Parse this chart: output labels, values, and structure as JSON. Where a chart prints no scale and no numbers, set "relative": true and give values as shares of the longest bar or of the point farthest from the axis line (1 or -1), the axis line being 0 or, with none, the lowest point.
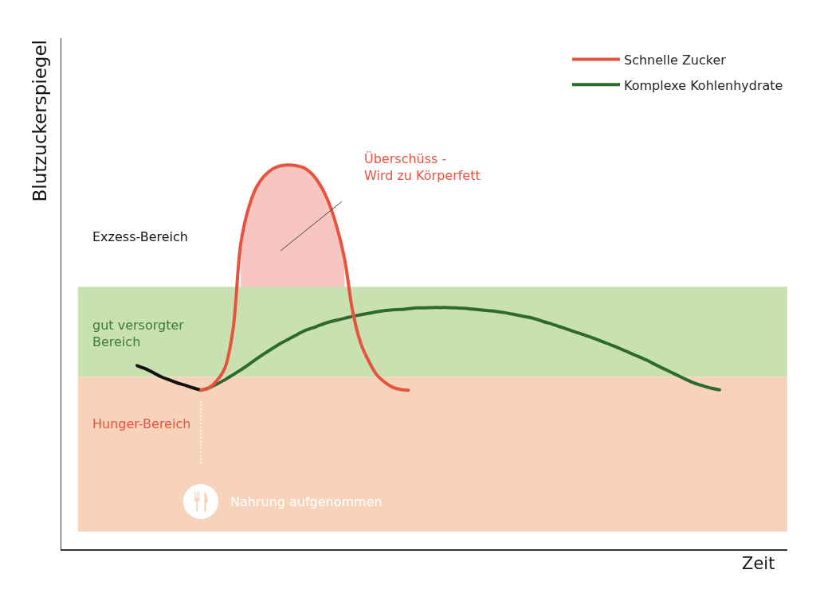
{
  "chart_data": {
    "type": "line",
    "relative": true,
    "xlabel": "Zeit",
    "ylabel": "Blutzuckerspiegel",
    "categories": [
      null,
      null,
      null,
      null,
      null,
      null,
      null,
      null,
      null,
      null,
      null,
      null,
      null,
      null,
      null,
      null,
      null,
      null,
      null,
      null,
      null,
      null,
      null,
      null,
      null,
      null,
      null,
      null,
      null,
      null,
      null,
      null,
      null,
      null,
      null,
      null,
      null,
      null,
      null,
      null,
      null,
      null,
      null,
      null,
      null,
      null,
      null,
      null,
      null,
      null,
      null,
      null,
      null,
      null,
      null,
      null,
      null,
      null,
      null,
      null,
      null,
      null,
      null,
      null,
      null,
      null,
      null,
      null,
      null,
      null,
      null,
      null,
      null,
      null,
      null,
      null,
      null,
      null,
      null,
      null,
      null,
      null,
      null,
      null,
      null,
      null,
      null,
      null,
      null,
      null,
      null
    ],
    "series": [
      {
        "name": "Schnelle Zucker",
        "color": "#e8533f",
        "values": [
          null,
          null,
          null,
          null,
          null,
          null,
          null,
          null,
          null,
          null,
          null,
          null,
          null,
          null,
          null,
          null,
          null,
          0.414,
          0.42,
          0.439,
          0.472,
          0.569,
          0.797,
          0.89,
          0.944,
          0.973,
          0.99,
          0.998,
          1.0,
          0.998,
          0.992,
          0.975,
          0.946,
          0.903,
          0.841,
          0.756,
          0.621,
          0.538,
          0.491,
          0.455,
          0.435,
          0.422,
          0.416,
          0.414,
          null,
          null,
          null,
          null,
          null,
          null,
          null,
          null,
          null,
          null,
          null,
          null,
          null,
          null,
          null,
          null,
          null,
          null,
          null,
          null,
          null,
          null,
          null,
          null,
          null,
          null,
          null,
          null,
          null,
          null,
          null,
          null,
          null,
          null,
          null,
          null,
          null,
          null,
          null,
          null,
          null,
          null,
          null,
          null,
          null,
          null,
          null
        ],
        "lower": [
          null,
          null,
          null,
          null,
          null,
          null,
          null,
          null,
          null,
          null,
          null,
          null,
          null,
          null,
          null,
          null,
          null,
          null,
          null,
          null,
          null,
          null,
          0.683,
          0.683,
          0.683,
          0.683,
          0.683,
          0.683,
          0.683,
          0.683,
          0.683,
          0.683,
          0.683,
          0.683,
          0.683,
          0.683,
          null,
          null,
          null,
          null,
          null,
          null,
          null,
          null,
          null,
          null,
          null,
          null,
          null,
          null,
          null,
          null,
          null,
          null,
          null,
          null,
          null,
          null,
          null,
          null,
          null,
          null,
          null,
          null,
          null,
          null,
          null,
          null,
          null,
          null,
          null,
          null,
          null,
          null,
          null,
          null,
          null,
          null,
          null,
          null,
          null,
          null,
          null,
          null,
          null,
          null,
          null,
          null,
          null,
          null,
          null
        ],
        "upper": [
          null,
          null,
          null,
          null,
          null,
          null,
          null,
          null,
          null,
          null,
          null,
          null,
          null,
          null,
          null,
          null,
          null,
          null,
          null,
          null,
          null,
          null,
          0.797,
          0.89,
          0.944,
          0.973,
          0.99,
          0.998,
          1.0,
          0.998,
          0.992,
          0.975,
          0.946,
          0.903,
          0.841,
          0.756,
          null,
          null,
          null,
          null,
          null,
          null,
          null,
          null,
          null,
          null,
          null,
          null,
          null,
          null,
          null,
          null,
          null,
          null,
          null,
          null,
          null,
          null,
          null,
          null,
          null,
          null,
          null,
          null,
          null,
          null,
          null,
          null,
          null,
          null,
          null,
          null,
          null,
          null,
          null,
          null,
          null,
          null,
          null,
          null,
          null,
          null,
          null,
          null,
          null,
          null,
          null,
          null,
          null,
          null,
          null
        ]
      },
      {
        "name": "Komplexe Kohlenhydrate",
        "color": "#2e6a2b",
        "values": [
          null,
          null,
          null,
          null,
          null,
          null,
          null,
          null,
          null,
          null,
          null,
          null,
          null,
          null,
          null,
          null,
          null,
          0.414,
          0.42,
          0.43,
          0.441,
          0.454,
          0.467,
          0.481,
          0.496,
          0.51,
          0.523,
          0.536,
          0.547,
          0.558,
          0.569,
          0.576,
          0.584,
          0.591,
          0.596,
          0.601,
          0.606,
          0.61,
          0.614,
          0.618,
          0.621,
          0.623,
          0.624,
          0.626,
          0.628,
          0.628,
          0.629,
          0.629,
          0.629,
          0.628,
          0.627,
          0.625,
          0.623,
          0.621,
          0.619,
          0.616,
          0.612,
          0.608,
          0.604,
          0.599,
          0.592,
          0.586,
          0.579,
          0.572,
          0.565,
          0.558,
          0.551,
          0.543,
          0.535,
          0.527,
          0.518,
          0.509,
          0.5,
          0.491,
          0.48,
          0.47,
          0.46,
          0.45,
          0.44,
          0.431,
          0.425,
          0.419,
          0.415,
          null,
          null,
          null,
          null,
          null,
          null,
          null,
          null
        ]
      },
      {
        "color": "#111111",
        "values": [
          null,
          null,
          null,
          null,
          null,
          null,
          null,
          null,
          null,
          0.478,
          0.47,
          0.46,
          0.449,
          0.441,
          0.433,
          0.427,
          0.42,
          0.414,
          null,
          null,
          null,
          null,
          null,
          null,
          null,
          null,
          null,
          null,
          null,
          null,
          null,
          null,
          null,
          null,
          null,
          null,
          null,
          null,
          null,
          null,
          null,
          null,
          null,
          null,
          null,
          null,
          null,
          null,
          null,
          null,
          null,
          null,
          null,
          null,
          null,
          null,
          null,
          null,
          null,
          null,
          null,
          null,
          null,
          null,
          null,
          null,
          null,
          null,
          null,
          null,
          null,
          null,
          null,
          null,
          null,
          null,
          null,
          null,
          null,
          null,
          null,
          null,
          null,
          null,
          null,
          null,
          null,
          null,
          null,
          null,
          null
        ]
      }
    ],
    "bands": [
      {
        "axis": "y",
        "from": 0.046,
        "to": 0.449,
        "label": "Hunger-Bereich",
        "color": "#f7d3bb"
      },
      {
        "axis": "y",
        "from": 0.449,
        "to": 0.683,
        "label": "gut versorgter\nBereich",
        "color": "#c9e0b0"
      }
    ],
    "annotations": [
      "Exzess-Bereich",
      "Überschüss -\nWird zu Körperfett",
      "Nahrung aufgenommen"
    ],
    "legend": "top right"
  }
}
